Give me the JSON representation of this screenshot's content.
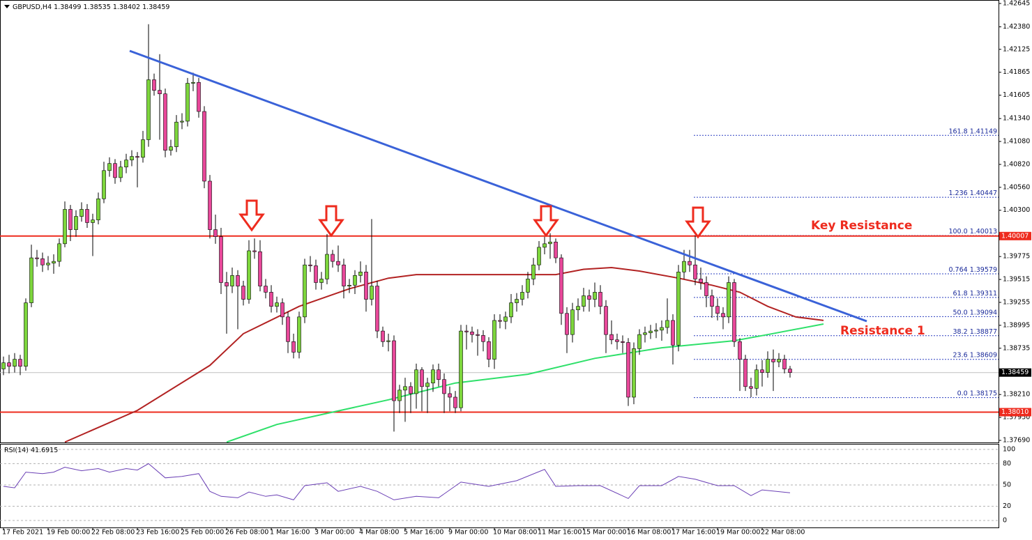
{
  "chart_data": {
    "type": "candlestick",
    "symbol": "GBPUSD,H4",
    "up_color": "#7dd63c",
    "down_color": "#e8489a",
    "xlim": [
      -0.625,
      178.375
    ],
    "ylim": [
      1.3769,
      1.42645
    ],
    "yticks": [
      1.42645,
      {
        "value": 1.4238,
        "label": "1.42380"
      },
      1.42125,
      1.41865,
      1.41605,
      {
        "value": 1.4134,
        "label": "1.41340"
      },
      {
        "value": 1.4108,
        "label": "1.41080"
      },
      {
        "value": 1.4082,
        "label": "1.40820"
      },
      {
        "value": 1.4056,
        "label": "1.40560"
      },
      {
        "value": 1.403,
        "label": "1.40300"
      },
      1.39775,
      1.39515,
      1.39255,
      1.38995,
      1.38735,
      {
        "value": 1.3821,
        "label": "1.38210"
      },
      {
        "value": 1.3795,
        "label": "1.37950"
      },
      {
        "value": 1.3769,
        "label": "1.37690"
      }
    ],
    "xticks": [
      {
        "value": 0,
        "label": "17 Feb 2021"
      },
      {
        "value": 8,
        "label": "19 Feb 00:00"
      },
      {
        "value": 16,
        "label": "22 Feb 08:00"
      },
      {
        "value": 24,
        "label": "23 Feb 16:00"
      },
      {
        "value": 32,
        "label": "25 Feb 00:00"
      },
      {
        "value": 40,
        "label": "26 Feb 08:00"
      },
      {
        "value": 48,
        "label": "1 Mar 16:00"
      },
      {
        "value": 56,
        "label": "3 Mar 00:00"
      },
      {
        "value": 64,
        "label": "4 Mar 08:00"
      },
      {
        "value": 72,
        "label": "5 Mar 16:00"
      },
      {
        "value": 80,
        "label": "9 Mar 00:00"
      },
      {
        "value": 88,
        "label": "10 Mar 08:00"
      },
      {
        "value": 96,
        "label": "11 Mar 16:00"
      },
      {
        "value": 104,
        "label": "15 Mar 00:00"
      },
      {
        "value": 112,
        "label": "16 Mar 08:00"
      },
      {
        "value": 120,
        "label": "17 Mar 16:00"
      },
      {
        "value": 128,
        "label": "19 Mar 00:00"
      },
      {
        "value": 136,
        "label": "22 Mar 08:00"
      }
    ],
    "ohlc": [
      [
        1.385,
        1.3864,
        1.3843,
        1.3857
      ],
      [
        1.3857,
        1.3866,
        1.3845,
        1.3853
      ],
      [
        1.3853,
        1.3868,
        1.3846,
        1.3861
      ],
      [
        1.3861,
        1.3866,
        1.3843,
        1.3853
      ],
      [
        1.3853,
        1.393,
        1.3848,
        1.3925
      ],
      [
        1.3925,
        1.3991,
        1.392,
        1.3976
      ],
      [
        1.3976,
        1.3985,
        1.3966,
        1.3975
      ],
      [
        1.3975,
        1.3982,
        1.396,
        1.3968
      ],
      [
        1.3968,
        1.3978,
        1.3962,
        1.397
      ],
      [
        1.397,
        1.398,
        1.3958,
        1.3972
      ],
      [
        1.3972,
        1.3998,
        1.3966,
        1.3992
      ],
      [
        1.3992,
        1.404,
        1.3988,
        1.4031
      ],
      [
        1.4031,
        1.4036,
        1.3995,
        1.4008
      ],
      [
        1.4008,
        1.403,
        1.4,
        1.4023
      ],
      [
        1.4023,
        1.4039,
        1.4017,
        1.4031
      ],
      [
        1.4031,
        1.4037,
        1.401,
        1.4016
      ],
      [
        1.4016,
        1.4026,
        1.3978,
        1.4019
      ],
      [
        1.4019,
        1.405,
        1.4014,
        1.4043
      ],
      [
        1.4043,
        1.4085,
        1.4038,
        1.4075
      ],
      [
        1.4075,
        1.409,
        1.4068,
        1.4083
      ],
      [
        1.4083,
        1.4088,
        1.406,
        1.4067
      ],
      [
        1.4067,
        1.4086,
        1.4062,
        1.4079
      ],
      [
        1.4079,
        1.4094,
        1.4072,
        1.4087
      ],
      [
        1.4087,
        1.4098,
        1.408,
        1.4091
      ],
      [
        1.4091,
        1.4096,
        1.4056,
        1.409
      ],
      [
        1.409,
        1.412,
        1.4084,
        1.411
      ],
      [
        1.411,
        1.4241,
        1.4102,
        1.4178
      ],
      [
        1.4178,
        1.4185,
        1.416,
        1.4166
      ],
      [
        1.4166,
        1.4207,
        1.411,
        1.4162
      ],
      [
        1.4162,
        1.4168,
        1.409,
        1.4098
      ],
      [
        1.4098,
        1.411,
        1.4092,
        1.4102
      ],
      [
        1.4102,
        1.4138,
        1.4096,
        1.413
      ],
      [
        1.413,
        1.414,
        1.4122,
        1.4131
      ],
      [
        1.4131,
        1.418,
        1.4125,
        1.4174
      ],
      [
        1.4174,
        1.4186,
        1.4165,
        1.4175
      ],
      [
        1.4175,
        1.418,
        1.4135,
        1.4142
      ],
      [
        1.4142,
        1.4148,
        1.4055,
        1.4063
      ],
      [
        1.4063,
        1.407,
        1.3998,
        1.4008
      ],
      [
        1.4008,
        1.4025,
        1.3992,
        1.4
      ],
      [
        1.4,
        1.401,
        1.3935,
        1.3948
      ],
      [
        1.3948,
        1.396,
        1.389,
        1.3944
      ],
      [
        1.3944,
        1.3965,
        1.3936,
        1.3956
      ],
      [
        1.3956,
        1.3962,
        1.3895,
        1.3944
      ],
      [
        1.3944,
        1.395,
        1.3922,
        1.3929
      ],
      [
        1.3929,
        1.3996,
        1.3924,
        1.3984
      ],
      [
        1.3984,
        1.3998,
        1.3975,
        1.3983
      ],
      [
        1.3983,
        1.3996,
        1.3938,
        1.3944
      ],
      [
        1.3944,
        1.3952,
        1.393,
        1.3937
      ],
      [
        1.3937,
        1.3945,
        1.3914,
        1.3921
      ],
      [
        1.3921,
        1.3932,
        1.3914,
        1.3925
      ],
      [
        1.3925,
        1.393,
        1.39,
        1.3909
      ],
      [
        1.3909,
        1.3915,
        1.3868,
        1.3881
      ],
      [
        1.3881,
        1.389,
        1.3862,
        1.3869
      ],
      [
        1.3869,
        1.3915,
        1.3862,
        1.3909
      ],
      [
        1.3909,
        1.3975,
        1.3902,
        1.3968
      ],
      [
        1.3968,
        1.3978,
        1.396,
        1.3967
      ],
      [
        1.3967,
        1.3974,
        1.394,
        1.3948
      ],
      [
        1.3948,
        1.396,
        1.394,
        1.3952
      ],
      [
        1.3952,
        1.4003,
        1.3946,
        1.398
      ],
      [
        1.398,
        1.3985,
        1.3965,
        1.3972
      ],
      [
        1.3972,
        1.399,
        1.396,
        1.3968
      ],
      [
        1.3968,
        1.3975,
        1.393,
        1.3944
      ],
      [
        1.3944,
        1.3952,
        1.3936,
        1.3945
      ],
      [
        1.3945,
        1.3962,
        1.3935,
        1.3956
      ],
      [
        1.3956,
        1.3972,
        1.3948,
        1.396
      ],
      [
        1.396,
        1.3968,
        1.3915,
        1.3929
      ],
      [
        1.3929,
        1.402,
        1.3922,
        1.3944
      ],
      [
        1.3944,
        1.395,
        1.3885,
        1.3893
      ],
      [
        1.3893,
        1.3898,
        1.3875,
        1.3881
      ],
      [
        1.3881,
        1.389,
        1.387,
        1.3882
      ],
      [
        1.3882,
        1.3888,
        1.3779,
        1.3814
      ],
      [
        1.3814,
        1.3832,
        1.38,
        1.3826
      ],
      [
        1.3826,
        1.384,
        1.379,
        1.383
      ],
      [
        1.383,
        1.3835,
        1.38,
        1.3822
      ],
      [
        1.3822,
        1.3856,
        1.3805,
        1.3849
      ],
      [
        1.3849,
        1.3852,
        1.3802,
        1.383
      ],
      [
        1.383,
        1.384,
        1.38,
        1.3834
      ],
      [
        1.3834,
        1.3855,
        1.3824,
        1.3849
      ],
      [
        1.3849,
        1.3856,
        1.383,
        1.3838
      ],
      [
        1.3838,
        1.3845,
        1.38,
        1.3822
      ],
      [
        1.3822,
        1.383,
        1.3802,
        1.3818
      ],
      [
        1.3818,
        1.3825,
        1.38,
        1.3806
      ],
      [
        1.3806,
        1.39,
        1.3802,
        1.3893
      ],
      [
        1.3893,
        1.39,
        1.3872,
        1.3892
      ],
      [
        1.3892,
        1.3898,
        1.388,
        1.3889
      ],
      [
        1.3889,
        1.3895,
        1.3865,
        1.3888
      ],
      [
        1.3888,
        1.3894,
        1.387,
        1.3881
      ],
      [
        1.3881,
        1.3886,
        1.3852,
        1.3861
      ],
      [
        1.3861,
        1.3912,
        1.385,
        1.3905
      ],
      [
        1.3905,
        1.3912,
        1.3896,
        1.3904
      ],
      [
        1.3904,
        1.3915,
        1.3895,
        1.3909
      ],
      [
        1.3909,
        1.3935,
        1.3902,
        1.3925
      ],
      [
        1.3925,
        1.3936,
        1.3915,
        1.3929
      ],
      [
        1.3929,
        1.3945,
        1.3922,
        1.3937
      ],
      [
        1.3937,
        1.396,
        1.393,
        1.3952
      ],
      [
        1.3952,
        1.3976,
        1.3945,
        1.3968
      ],
      [
        1.3968,
        1.3995,
        1.3962,
        1.3988
      ],
      [
        1.3988,
        1.4,
        1.398,
        1.3992
      ],
      [
        1.3992,
        1.4004,
        1.3975,
        1.3994
      ],
      [
        1.3994,
        1.3998,
        1.397,
        1.3976
      ],
      [
        1.3976,
        1.398,
        1.39,
        1.3913
      ],
      [
        1.3913,
        1.392,
        1.3868,
        1.3889
      ],
      [
        1.3889,
        1.3925,
        1.388,
        1.3917
      ],
      [
        1.3917,
        1.393,
        1.3905,
        1.3921
      ],
      [
        1.3921,
        1.3942,
        1.3915,
        1.3933
      ],
      [
        1.3933,
        1.394,
        1.3915,
        1.3929
      ],
      [
        1.3929,
        1.3948,
        1.392,
        1.3937
      ],
      [
        1.3937,
        1.3945,
        1.3912,
        1.3921
      ],
      [
        1.3921,
        1.3928,
        1.3868,
        1.3889
      ],
      [
        1.3889,
        1.3905,
        1.3878,
        1.3883
      ],
      [
        1.3883,
        1.389,
        1.3872,
        1.3881
      ],
      [
        1.3881,
        1.3888,
        1.3868,
        1.388
      ],
      [
        1.388,
        1.3885,
        1.3808,
        1.3818
      ],
      [
        1.3818,
        1.388,
        1.381,
        1.3873
      ],
      [
        1.3873,
        1.3895,
        1.3866,
        1.3889
      ],
      [
        1.3889,
        1.3898,
        1.388,
        1.3891
      ],
      [
        1.3891,
        1.39,
        1.3884,
        1.3893
      ],
      [
        1.3893,
        1.3902,
        1.3885,
        1.3894
      ],
      [
        1.3894,
        1.3905,
        1.3882,
        1.3897
      ],
      [
        1.3897,
        1.393,
        1.389,
        1.3905
      ],
      [
        1.3905,
        1.3912,
        1.3855,
        1.3877
      ],
      [
        1.3877,
        1.3968,
        1.387,
        1.396
      ],
      [
        1.396,
        1.3985,
        1.3952,
        1.3972
      ],
      [
        1.3972,
        1.3985,
        1.396,
        1.3968
      ],
      [
        1.3968,
        1.4001,
        1.3945,
        1.3952
      ],
      [
        1.3952,
        1.3965,
        1.394,
        1.3948
      ],
      [
        1.3948,
        1.3955,
        1.392,
        1.3933
      ],
      [
        1.3933,
        1.394,
        1.3908,
        1.3921
      ],
      [
        1.3921,
        1.393,
        1.3905,
        1.3913
      ],
      [
        1.3913,
        1.392,
        1.3895,
        1.3909
      ],
      [
        1.3909,
        1.3955,
        1.3902,
        1.3948
      ],
      [
        1.3948,
        1.3952,
        1.3875,
        1.3881
      ],
      [
        1.3881,
        1.3885,
        1.3825,
        1.3861
      ],
      [
        1.3861,
        1.3866,
        1.3825,
        1.383
      ],
      [
        1.383,
        1.384,
        1.3818,
        1.3828
      ],
      [
        1.3828,
        1.3855,
        1.382,
        1.3849
      ],
      [
        1.3849,
        1.386,
        1.383,
        1.3846
      ],
      [
        1.3846,
        1.387,
        1.384,
        1.3861
      ],
      [
        1.3861,
        1.3872,
        1.3825,
        1.3858
      ],
      [
        1.3858,
        1.3868,
        1.3852,
        1.3861
      ],
      [
        1.3861,
        1.3866,
        1.3845,
        1.385
      ],
      [
        1.38499,
        1.38535,
        1.38402,
        1.38459
      ]
    ],
    "moving_averages": [
      {
        "color": "#b22222",
        "x": [
          11,
          24,
          37,
          43,
          53,
          62,
          69,
          74,
          93,
          99,
          104,
          109,
          114,
          121,
          127,
          132,
          137,
          142,
          147
        ],
        "values": [
          1.3767,
          1.3803,
          1.3854,
          1.389,
          1.3921,
          1.3941,
          1.3953,
          1.3957,
          1.3957,
          1.3957,
          1.3963,
          1.3965,
          1.3961,
          1.3953,
          1.3945,
          1.3937,
          1.3921,
          1.3909,
          1.3905
        ]
      },
      {
        "color": "#2ee06a",
        "x": [
          40,
          49,
          59,
          69,
          81,
          94,
          106,
          118,
          131,
          137,
          147
        ],
        "values": [
          1.3767,
          1.3787,
          1.3801,
          1.3815,
          1.3834,
          1.3844,
          1.3862,
          1.3874,
          1.3882,
          1.3889,
          1.3901
        ]
      }
    ],
    "levels": [
      {
        "value": 1.40007,
        "label": "1.40007",
        "color": "#ee2b1e"
      },
      {
        "value": 1.3801,
        "label": "1.38010",
        "color": "#ee2b1e"
      }
    ],
    "fibonacci": [
      {
        "level": "161.8",
        "price": 1.41149
      },
      {
        "level": "1.236",
        "price": 1.40447
      },
      {
        "level": "100.0",
        "price": 1.40013
      },
      {
        "level": "0.764",
        "price": 1.39579
      },
      {
        "level": "61.8",
        "price": 1.39311
      },
      {
        "level": "50.0",
        "price": 1.39094
      },
      {
        "level": "38.2",
        "price": 1.38877
      },
      {
        "level": "23.6",
        "price": 1.38609
      },
      {
        "level": "0.0",
        "price": 1.38175
      }
    ],
    "annotations": [
      "Key Resistance",
      "Resistance 1"
    ],
    "rsi": {
      "name": "RSI(14)",
      "current": 41.6915,
      "color": "#6a3fb5",
      "ylim": [
        0,
        100
      ],
      "yticks": [
        100,
        80,
        50,
        20,
        0
      ],
      "x": [
        0,
        2,
        4,
        7,
        9,
        11,
        14,
        17,
        19,
        22,
        24,
        26,
        29,
        32,
        35,
        37,
        39,
        42,
        44,
        47,
        49,
        52,
        54,
        58,
        60,
        64,
        67,
        70,
        74,
        78,
        82,
        87,
        92,
        97,
        99,
        103,
        107,
        112,
        114,
        118,
        121,
        124,
        128,
        131,
        134,
        136,
        141
      ],
      "values": [
        48,
        46,
        68,
        66,
        68,
        75,
        70,
        73,
        68,
        73,
        71,
        80,
        60,
        62,
        66,
        41,
        34,
        32,
        40,
        34,
        36,
        29,
        49,
        53,
        41,
        48,
        41,
        29,
        34,
        32,
        54,
        48,
        56,
        72,
        48,
        49,
        49,
        31,
        49,
        49,
        62,
        58,
        49,
        49,
        35,
        43,
        39
      ]
    }
  }
}
